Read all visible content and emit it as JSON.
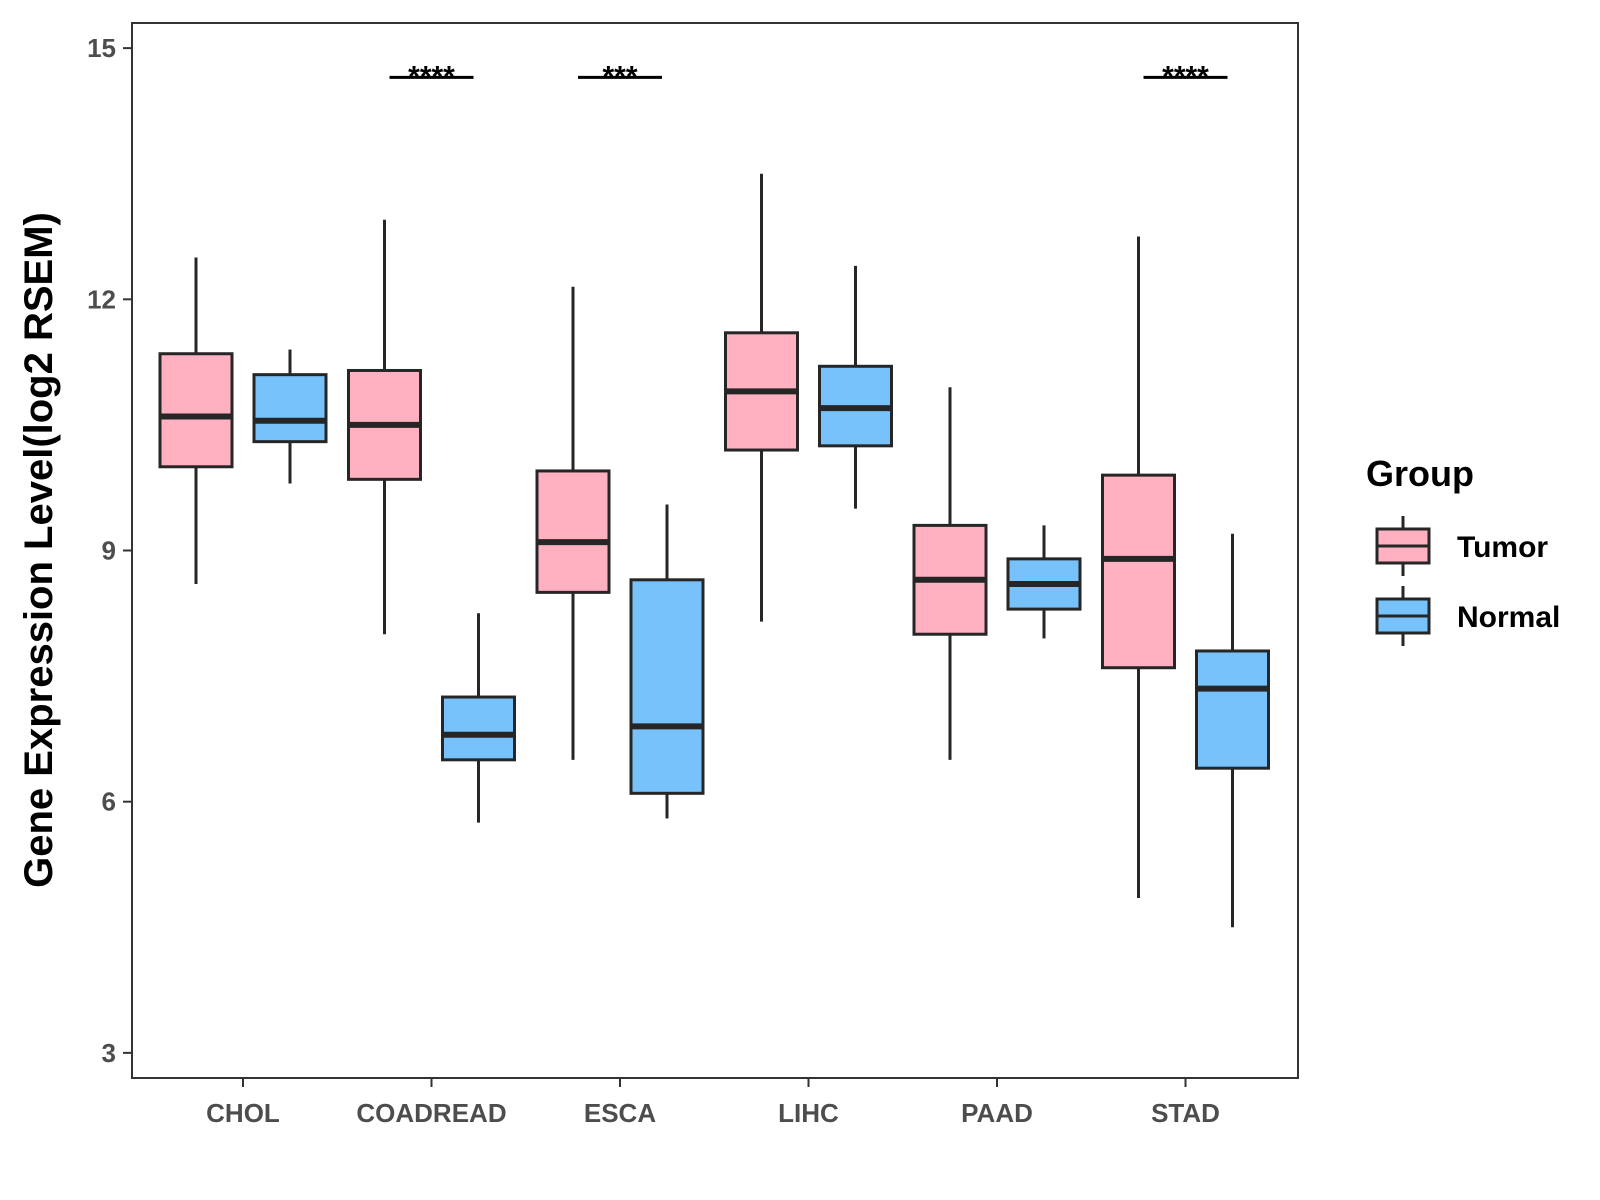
{
  "chart_data": {
    "type": "box",
    "title": "",
    "xlabel": "",
    "ylabel": "Gene Expression Level(log2 RSEM)",
    "ylim": [
      2.7,
      15.3
    ],
    "yticks": [
      3,
      6,
      9,
      12,
      15
    ],
    "categories": [
      "CHOL",
      "COADREAD",
      "ESCA",
      "LIHC",
      "PAAD",
      "STAD"
    ],
    "legend": {
      "title": "Group",
      "position": "right",
      "entries": [
        "Tumor",
        "Normal"
      ]
    },
    "colors": {
      "Tumor": "#FFB1C1",
      "Normal": "#77C2FA",
      "stroke": "#262626"
    },
    "series": [
      {
        "name": "Tumor",
        "boxes": [
          {
            "min": 8.6,
            "q1": 10.0,
            "median": 10.6,
            "q3": 11.35,
            "max": 12.5
          },
          {
            "min": 8.0,
            "q1": 9.85,
            "median": 10.5,
            "q3": 11.15,
            "max": 12.95
          },
          {
            "min": 6.5,
            "q1": 8.5,
            "median": 9.1,
            "q3": 9.95,
            "max": 12.15
          },
          {
            "min": 8.15,
            "q1": 10.2,
            "median": 10.9,
            "q3": 11.6,
            "max": 13.5
          },
          {
            "min": 6.5,
            "q1": 8.0,
            "median": 8.65,
            "q3": 9.3,
            "max": 10.95
          },
          {
            "min": 4.85,
            "q1": 7.6,
            "median": 8.9,
            "q3": 9.9,
            "max": 12.75
          }
        ]
      },
      {
        "name": "Normal",
        "boxes": [
          {
            "min": 9.8,
            "q1": 10.3,
            "median": 10.55,
            "q3": 11.1,
            "max": 11.4
          },
          {
            "min": 5.75,
            "q1": 6.5,
            "median": 6.8,
            "q3": 7.25,
            "max": 8.25
          },
          {
            "min": 5.8,
            "q1": 6.1,
            "median": 6.9,
            "q3": 8.65,
            "max": 9.55
          },
          {
            "min": 9.5,
            "q1": 10.25,
            "median": 10.7,
            "q3": 11.2,
            "max": 12.4
          },
          {
            "min": 7.95,
            "q1": 8.3,
            "median": 8.6,
            "q3": 8.9,
            "max": 9.3
          },
          {
            "min": 4.5,
            "q1": 6.4,
            "median": 7.35,
            "q3": 7.8,
            "max": 9.2
          }
        ]
      }
    ],
    "annotations": [
      {
        "category": "COADREAD",
        "label": "****",
        "y": 14.65
      },
      {
        "category": "ESCA",
        "label": "***",
        "y": 14.65
      },
      {
        "category": "STAD",
        "label": "****",
        "y": 14.65
      }
    ]
  }
}
